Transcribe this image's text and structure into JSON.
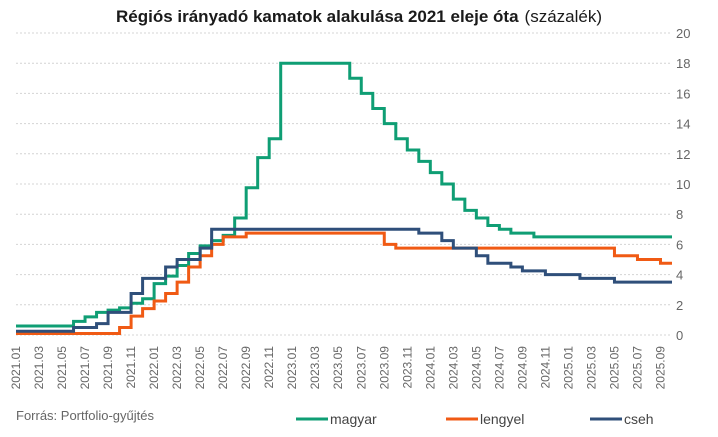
{
  "title": {
    "bold": "Régiós irányadó kamatok alakulása 2021 eleje óta",
    "normal": "(százalék)"
  },
  "source": "Forrás: Portfolio-gyűjtés",
  "chart_data": {
    "type": "line",
    "title": "Régiós irányadó kamatok alakulása 2021 eleje óta (százalék)",
    "xlabel": "",
    "ylabel": "",
    "ylim": [
      0,
      20
    ],
    "yticks": [
      "0",
      "2",
      "4",
      "6",
      "8",
      "10",
      "12",
      "14",
      "16",
      "18",
      "20"
    ],
    "xticks": [
      "2021.01",
      "2021.03",
      "2021.05",
      "2021.07",
      "2021.09",
      "2021.11",
      "2022.01",
      "2022.03",
      "2022.05",
      "2022.07",
      "2022.09",
      "2022.11",
      "2023.01",
      "2023.03",
      "2023.05",
      "2023.07",
      "2023.09",
      "2023.11",
      "2024.01",
      "2024.03",
      "2024.05",
      "2024.07",
      "2024.09",
      "2024.11",
      "2025.01",
      "2025.03",
      "2025.05",
      "2025.07",
      "2025.09"
    ],
    "grid": "horizontal",
    "legend_position": "bottom",
    "series": [
      {
        "name": "magyar",
        "color": "#0f9e74",
        "points": [
          [
            "2021.01",
            0.6
          ],
          [
            "2021.06",
            0.9
          ],
          [
            "2021.07",
            1.2
          ],
          [
            "2021.08",
            1.5
          ],
          [
            "2021.09",
            1.65
          ],
          [
            "2021.10",
            1.8
          ],
          [
            "2021.11",
            2.1
          ],
          [
            "2021.12",
            2.4
          ],
          [
            "2022.01",
            3.4
          ],
          [
            "2022.02",
            3.9
          ],
          [
            "2022.03",
            4.6
          ],
          [
            "2022.04",
            5.4
          ],
          [
            "2022.05",
            5.9
          ],
          [
            "2022.06",
            6.25
          ],
          [
            "2022.07",
            6.6
          ],
          [
            "2022.08",
            7.75
          ],
          [
            "2022.09",
            9.75
          ],
          [
            "2022.10",
            11.75
          ],
          [
            "2022.11",
            13.0
          ],
          [
            "2022.12",
            18.0
          ],
          [
            "2023.05",
            18.0
          ],
          [
            "2023.06",
            17.0
          ],
          [
            "2023.07",
            16.0
          ],
          [
            "2023.08",
            15.0
          ],
          [
            "2023.09",
            14.0
          ],
          [
            "2023.10",
            13.0
          ],
          [
            "2023.11",
            12.25
          ],
          [
            "2023.12",
            11.5
          ],
          [
            "2024.01",
            10.75
          ],
          [
            "2024.02",
            10.0
          ],
          [
            "2024.03",
            9.0
          ],
          [
            "2024.04",
            8.25
          ],
          [
            "2024.05",
            7.75
          ],
          [
            "2024.06",
            7.25
          ],
          [
            "2024.07",
            7.0
          ],
          [
            "2024.08",
            6.75
          ],
          [
            "2024.10",
            6.5
          ],
          [
            "2025.10",
            6.5
          ]
        ]
      },
      {
        "name": "lengyel",
        "color": "#f05a14",
        "points": [
          [
            "2021.01",
            0.1
          ],
          [
            "2021.10",
            0.5
          ],
          [
            "2021.11",
            1.25
          ],
          [
            "2021.12",
            1.75
          ],
          [
            "2022.01",
            2.25
          ],
          [
            "2022.02",
            2.75
          ],
          [
            "2022.03",
            3.5
          ],
          [
            "2022.04",
            4.5
          ],
          [
            "2022.05",
            5.25
          ],
          [
            "2022.06",
            6.0
          ],
          [
            "2022.07",
            6.5
          ],
          [
            "2022.09",
            6.75
          ],
          [
            "2023.09",
            6.0
          ],
          [
            "2023.10",
            5.75
          ],
          [
            "2025.05",
            5.25
          ],
          [
            "2025.07",
            5.0
          ],
          [
            "2025.09",
            4.75
          ],
          [
            "2025.10",
            4.75
          ]
        ]
      },
      {
        "name": "cseh",
        "color": "#2f4f7a",
        "points": [
          [
            "2021.01",
            0.25
          ],
          [
            "2021.06",
            0.5
          ],
          [
            "2021.08",
            0.75
          ],
          [
            "2021.09",
            1.5
          ],
          [
            "2021.11",
            2.75
          ],
          [
            "2021.12",
            3.75
          ],
          [
            "2022.02",
            4.5
          ],
          [
            "2022.03",
            5.0
          ],
          [
            "2022.05",
            5.75
          ],
          [
            "2022.06",
            7.0
          ],
          [
            "2023.12",
            6.75
          ],
          [
            "2024.02",
            6.25
          ],
          [
            "2024.03",
            5.75
          ],
          [
            "2024.05",
            5.25
          ],
          [
            "2024.06",
            4.75
          ],
          [
            "2024.08",
            4.5
          ],
          [
            "2024.09",
            4.25
          ],
          [
            "2024.11",
            4.0
          ],
          [
            "2025.02",
            3.75
          ],
          [
            "2025.05",
            3.5
          ],
          [
            "2025.10",
            3.5
          ]
        ]
      }
    ]
  }
}
